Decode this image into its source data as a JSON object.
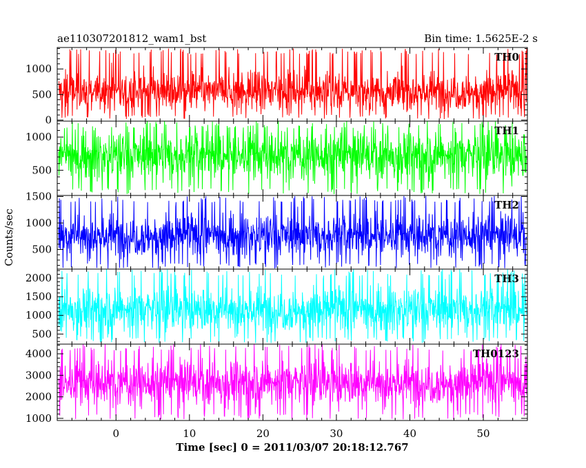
{
  "chart_data": {
    "type": "line",
    "title": "ae110307201812_wam1_bst",
    "subtitle": "Bin time: 1.5625E-2 s",
    "xlabel": "Time [sec] 0 = 2011/03/07 20:18:12.767",
    "ylabel": "Counts/sec",
    "xlim": [
      -8,
      56
    ],
    "xticks": [
      0,
      10,
      20,
      30,
      40,
      50
    ],
    "xtick_labels": [
      "0",
      "10",
      "20",
      "30",
      "40",
      "50"
    ],
    "grid": false,
    "panels": [
      {
        "name": "TH0",
        "color": "#ff0000",
        "ylim": [
          -20,
          1420
        ],
        "yticks": [
          0,
          500,
          1000
        ],
        "ytick_labels": [
          "0",
          "500",
          "1000"
        ],
        "minor_step": 100,
        "data_xrange": [
          -7.8,
          55.9
        ],
        "mean": 560,
        "sd": 190,
        "min": 20,
        "max": 1400
      },
      {
        "name": "TH1",
        "color": "#00ff00",
        "ylim": [
          120,
          1240
        ],
        "yticks": [
          500,
          1000
        ],
        "ytick_labels": [
          "500",
          "1000"
        ],
        "minor_step": 100,
        "data_xrange": [
          -7.8,
          55.9
        ],
        "mean": 720,
        "sd": 180,
        "min": 140,
        "max": 1240
      },
      {
        "name": "TH2",
        "color": "#0000ff",
        "ylim": [
          130,
          1520
        ],
        "yticks": [
          500,
          1000,
          1500
        ],
        "ytick_labels": [
          "500",
          "1000",
          "1500"
        ],
        "minor_step": 100,
        "data_xrange": [
          -7.8,
          55.9
        ],
        "mean": 760,
        "sd": 200,
        "min": 140,
        "max": 1510
      },
      {
        "name": "TH3",
        "color": "#00ffff",
        "ylim": [
          230,
          2240
        ],
        "yticks": [
          500,
          1000,
          1500,
          2000
        ],
        "ytick_labels": [
          "500",
          "1000",
          "1500",
          "2000"
        ],
        "minor_step": 100,
        "data_xrange": [
          -7.8,
          55.9
        ],
        "mean": 1150,
        "sd": 300,
        "min": 260,
        "max": 2240
      },
      {
        "name": "TH0123",
        "color": "#ff00ff",
        "ylim": [
          900,
          4450
        ],
        "yticks": [
          1000,
          2000,
          3000,
          4000
        ],
        "ytick_labels": [
          "1000",
          "2000",
          "3000",
          "4000"
        ],
        "minor_step": 200,
        "data_xrange": [
          -7.8,
          55.9
        ],
        "mean": 2650,
        "sd": 520,
        "min": 950,
        "max": 4450
      }
    ]
  }
}
